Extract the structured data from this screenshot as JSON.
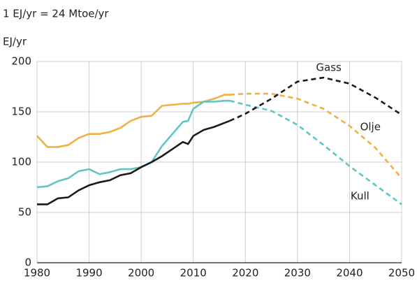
{
  "chart_data": {
    "type": "line",
    "subtitle": "1 EJ/yr = 24 Mtoe/yr",
    "y_label": "EJ/yr",
    "x": [
      1980,
      1982,
      1984,
      1986,
      1988,
      1990,
      1992,
      1994,
      1996,
      1998,
      2000,
      2002,
      2004,
      2006,
      2008,
      2009,
      2010,
      2012,
      2014,
      2016,
      2017,
      2020,
      2025,
      2030,
      2035,
      2040,
      2045,
      2050
    ],
    "series": [
      {
        "name": "Olje",
        "color": "#f0b043",
        "values": [
          126,
          115,
          115,
          117,
          124,
          128,
          128,
          130,
          134,
          141,
          145,
          146,
          156,
          157,
          158,
          158,
          159,
          160,
          163,
          167,
          167,
          168,
          168,
          163,
          153,
          136,
          114,
          84
        ]
      },
      {
        "name": "Kull",
        "color": "#5ec6c4",
        "values": [
          75,
          76,
          81,
          84,
          91,
          93,
          88,
          90,
          93,
          93,
          95,
          100,
          116,
          128,
          140,
          141,
          153,
          160,
          160,
          161,
          161,
          157,
          151,
          137,
          117,
          96,
          77,
          58
        ]
      },
      {
        "name": "Gass",
        "color": "#1a1a1a",
        "values": [
          58,
          58,
          64,
          65,
          72,
          77,
          80,
          82,
          87,
          89,
          95,
          100,
          106,
          113,
          120,
          118,
          126,
          132,
          135,
          139,
          141,
          148,
          163,
          180,
          184,
          178,
          164,
          147
        ]
      }
    ],
    "dashed_from": 2017,
    "xlim": [
      1980,
      2050
    ],
    "xticks": [
      1980,
      1990,
      2000,
      2010,
      2020,
      2030,
      2040,
      2050
    ],
    "ylim": [
      0,
      200
    ],
    "yticks": [
      0,
      50,
      100,
      150,
      200
    ],
    "grid": true
  }
}
